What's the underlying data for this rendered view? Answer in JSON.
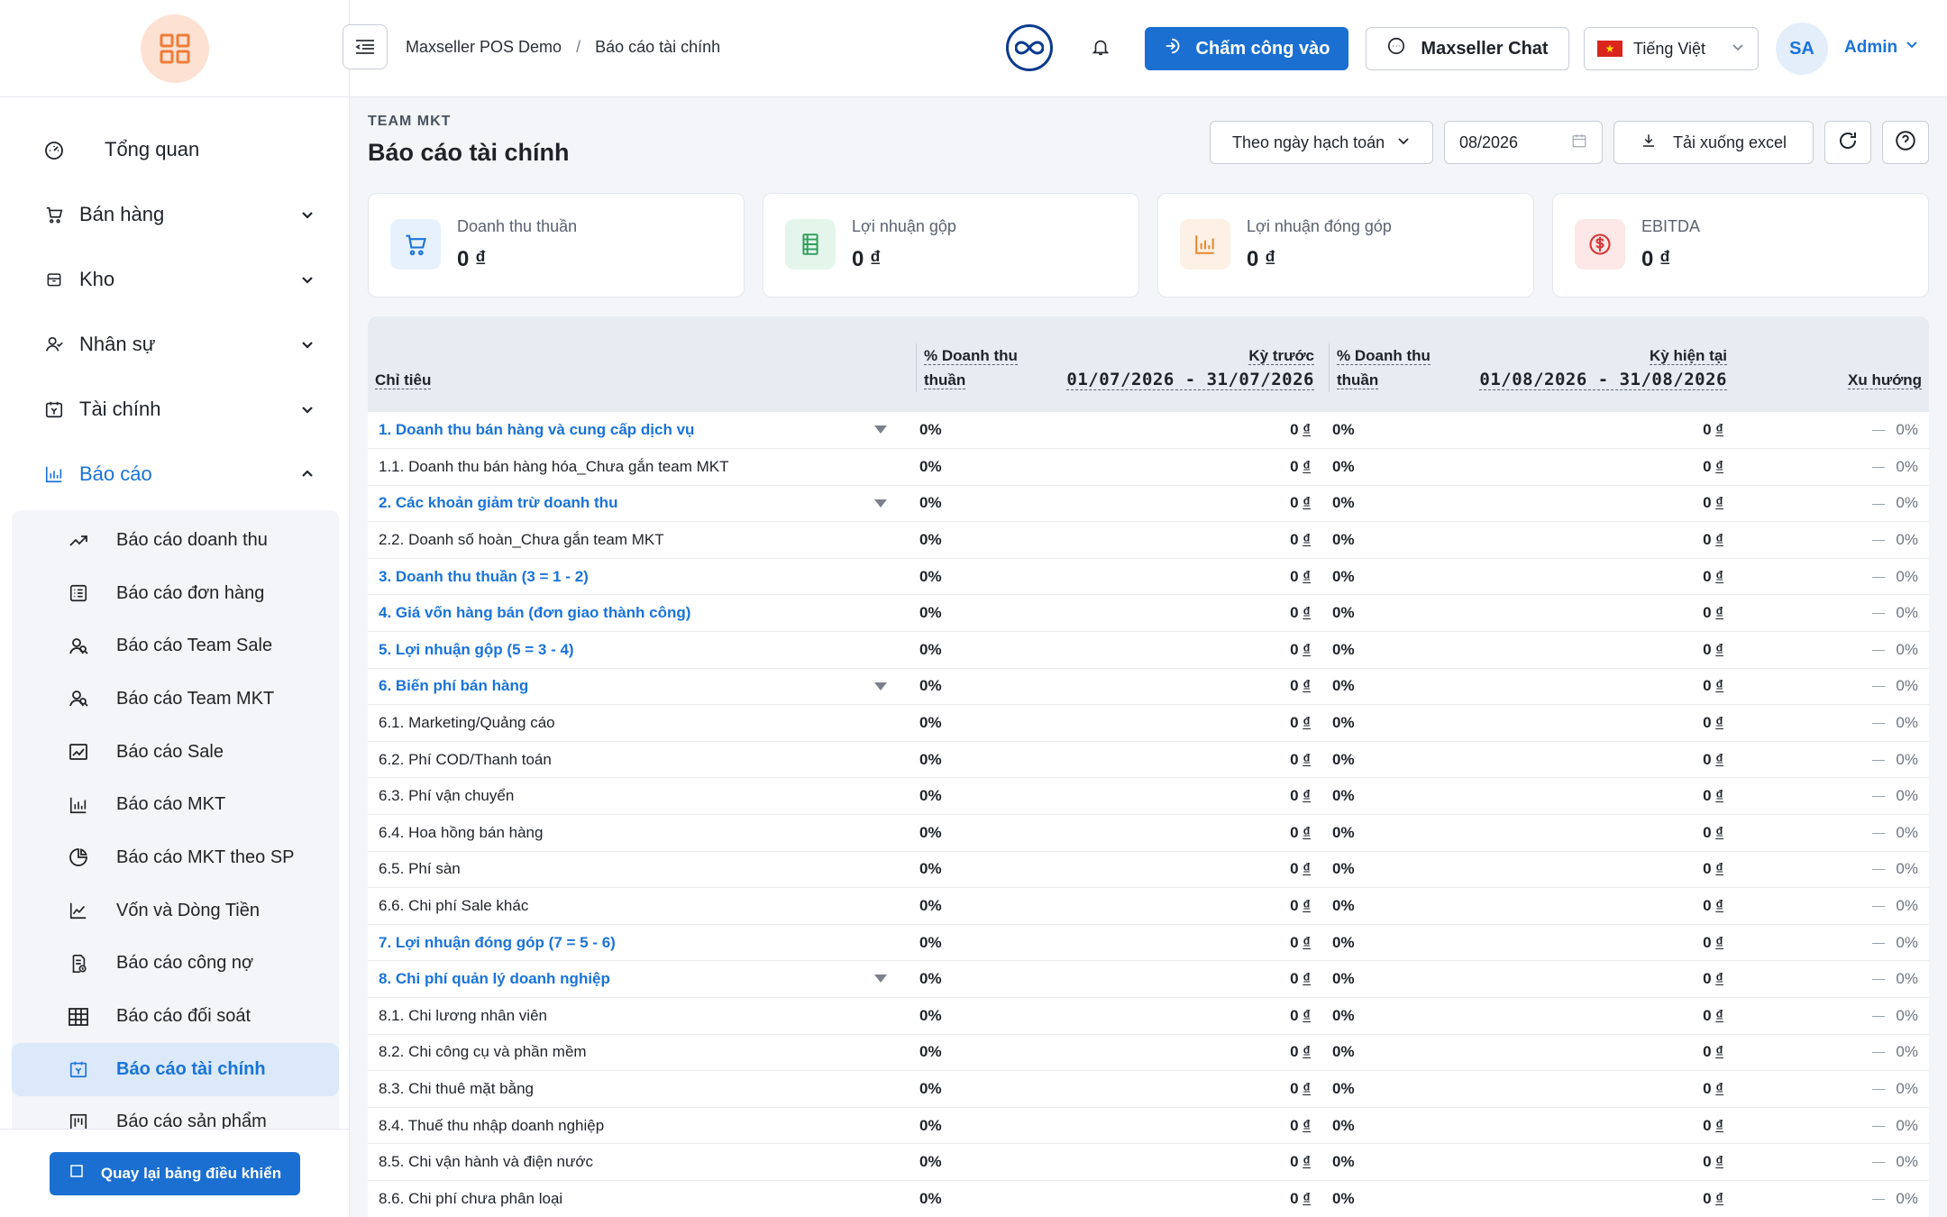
{
  "sidebar": {
    "items": [
      {
        "label": "Tổng quan",
        "icon": "dashboard-icon"
      },
      {
        "label": "Bán hàng",
        "icon": "cart-icon"
      },
      {
        "label": "Kho",
        "icon": "box-icon"
      },
      {
        "label": "Nhân sự",
        "icon": "users-icon"
      },
      {
        "label": "Tài chính",
        "icon": "finance-icon"
      },
      {
        "label": "Báo cáo",
        "icon": "bar-chart-icon"
      }
    ],
    "subitems": [
      {
        "label": "Báo cáo doanh thu",
        "icon": "trend-up-icon"
      },
      {
        "label": "Báo cáo đơn hàng",
        "icon": "list-icon"
      },
      {
        "label": "Báo cáo Team Sale",
        "icon": "team-icon"
      },
      {
        "label": "Báo cáo Team MKT",
        "icon": "team-icon"
      },
      {
        "label": "Báo cáo Sale",
        "icon": "line-chart-icon"
      },
      {
        "label": "Báo cáo MKT",
        "icon": "bar-chart-icon"
      },
      {
        "label": "Báo cáo MKT theo SP",
        "icon": "pie-chart-icon"
      },
      {
        "label": "Vốn và Dòng Tiền",
        "icon": "stock-chart-icon"
      },
      {
        "label": "Báo cáo công nợ",
        "icon": "doc-icon"
      },
      {
        "label": "Báo cáo đối soát",
        "icon": "grid-icon"
      },
      {
        "label": "Báo cáo tài chính",
        "icon": "calendar-money-icon"
      },
      {
        "label": "Báo cáo sản phẩm",
        "icon": "kanban-icon"
      }
    ],
    "back_label": "Quay lại bảng điều khiển"
  },
  "header": {
    "breadcrumb": [
      "Maxseller POS Demo",
      "/",
      "Báo cáo tài chính"
    ],
    "checkin_label": "Chấm công vào",
    "chat_label": "Maxseller Chat",
    "language": "Tiếng Việt",
    "avatar_initials": "SA",
    "user_name": "Admin"
  },
  "page": {
    "team": "TEAM MKT",
    "title": "Báo cáo tài chính",
    "filter_select": "Theo ngày hạch toán",
    "date_value": "08/2026",
    "excel_label": "Tải xuống excel"
  },
  "cards": [
    {
      "label": "Doanh thu thuần",
      "value": "0 ₫",
      "bg": "#e6f1fc",
      "color": "#1a73d9"
    },
    {
      "label": "Lợi nhuận gộp",
      "value": "0 ₫",
      "bg": "#e4f5ec",
      "color": "#2e9e5b"
    },
    {
      "label": "Lợi nhuận đóng góp",
      "value": "0 ₫",
      "bg": "#fdf0e4",
      "color": "#e8852c"
    },
    {
      "label": "EBITDA",
      "value": "0 ₫",
      "bg": "#fde7e7",
      "color": "#d93636"
    }
  ],
  "table": {
    "headers": {
      "metric": "Chỉ tiêu",
      "pct_line1": "% Doanh thu",
      "pct_line2": "thuần",
      "prev_label": "Kỳ trước",
      "prev_range": "01/07/2026 - 31/07/2026",
      "curr_label": "Kỳ hiện tại",
      "curr_range": "01/08/2026 - 31/08/2026",
      "trend": "Xu hướng"
    },
    "rows": [
      {
        "name": "1. Doanh thu bán hàng và cung cấp dịch vụ",
        "group": true,
        "caret": true,
        "pct1": "0%",
        "prev": "0",
        "pct2": "0%",
        "curr": "0",
        "trend": "0%"
      },
      {
        "name": "1.1. Doanh thu bán hàng hóa_Chưa gắn team MKT",
        "group": false,
        "caret": false,
        "pct1": "0%",
        "prev": "0",
        "pct2": "0%",
        "curr": "0",
        "trend": "0%"
      },
      {
        "name": "2. Các khoản giảm trừ doanh thu",
        "group": true,
        "caret": true,
        "pct1": "0%",
        "prev": "0",
        "pct2": "0%",
        "curr": "0",
        "trend": "0%"
      },
      {
        "name": "2.2. Doanh số hoàn_Chưa gắn team MKT",
        "group": false,
        "caret": false,
        "pct1": "0%",
        "prev": "0",
        "pct2": "0%",
        "curr": "0",
        "trend": "0%"
      },
      {
        "name": "3. Doanh thu thuần (3 = 1 - 2)",
        "group": true,
        "caret": false,
        "pct1": "0%",
        "prev": "0",
        "pct2": "0%",
        "curr": "0",
        "trend": "0%"
      },
      {
        "name": "4. Giá vốn hàng bán (đơn giao thành công)",
        "group": true,
        "caret": false,
        "pct1": "0%",
        "prev": "0",
        "pct2": "0%",
        "curr": "0",
        "trend": "0%"
      },
      {
        "name": "5. Lợi nhuận gộp (5 = 3 - 4)",
        "group": true,
        "caret": false,
        "pct1": "0%",
        "prev": "0",
        "pct2": "0%",
        "curr": "0",
        "trend": "0%"
      },
      {
        "name": "6. Biến phí bán hàng",
        "group": true,
        "caret": true,
        "pct1": "0%",
        "prev": "0",
        "pct2": "0%",
        "curr": "0",
        "trend": "0%"
      },
      {
        "name": "6.1. Marketing/Quảng cáo",
        "group": false,
        "caret": false,
        "pct1": "0%",
        "prev": "0",
        "pct2": "0%",
        "curr": "0",
        "trend": "0%"
      },
      {
        "name": "6.2. Phí COD/Thanh toán",
        "group": false,
        "caret": false,
        "pct1": "0%",
        "prev": "0",
        "pct2": "0%",
        "curr": "0",
        "trend": "0%"
      },
      {
        "name": "6.3. Phí vận chuyển",
        "group": false,
        "caret": false,
        "pct1": "0%",
        "prev": "0",
        "pct2": "0%",
        "curr": "0",
        "trend": "0%"
      },
      {
        "name": "6.4. Hoa hồng bán hàng",
        "group": false,
        "caret": false,
        "pct1": "0%",
        "prev": "0",
        "pct2": "0%",
        "curr": "0",
        "trend": "0%"
      },
      {
        "name": "6.5. Phí sàn",
        "group": false,
        "caret": false,
        "pct1": "0%",
        "prev": "0",
        "pct2": "0%",
        "curr": "0",
        "trend": "0%"
      },
      {
        "name": "6.6. Chi phí Sale khác",
        "group": false,
        "caret": false,
        "pct1": "0%",
        "prev": "0",
        "pct2": "0%",
        "curr": "0",
        "trend": "0%"
      },
      {
        "name": "7. Lợi nhuận đóng góp (7 = 5 - 6)",
        "group": true,
        "caret": false,
        "pct1": "0%",
        "prev": "0",
        "pct2": "0%",
        "curr": "0",
        "trend": "0%"
      },
      {
        "name": "8. Chi phí quản lý doanh nghiệp",
        "group": true,
        "caret": true,
        "pct1": "0%",
        "prev": "0",
        "pct2": "0%",
        "curr": "0",
        "trend": "0%"
      },
      {
        "name": "8.1. Chi lương nhân viên",
        "group": false,
        "caret": false,
        "pct1": "0%",
        "prev": "0",
        "pct2": "0%",
        "curr": "0",
        "trend": "0%"
      },
      {
        "name": "8.2. Chi công cụ và phần mềm",
        "group": false,
        "caret": false,
        "pct1": "0%",
        "prev": "0",
        "pct2": "0%",
        "curr": "0",
        "trend": "0%"
      },
      {
        "name": "8.3. Chi thuê mặt bằng",
        "group": false,
        "caret": false,
        "pct1": "0%",
        "prev": "0",
        "pct2": "0%",
        "curr": "0",
        "trend": "0%"
      },
      {
        "name": "8.4. Thuế thu nhập doanh nghiệp",
        "group": false,
        "caret": false,
        "pct1": "0%",
        "prev": "0",
        "pct2": "0%",
        "curr": "0",
        "trend": "0%"
      },
      {
        "name": "8.5. Chi vận hành và điện nước",
        "group": false,
        "caret": false,
        "pct1": "0%",
        "prev": "0",
        "pct2": "0%",
        "curr": "0",
        "trend": "0%"
      },
      {
        "name": "8.6. Chi phí chưa phân loại",
        "group": false,
        "caret": false,
        "pct1": "0%",
        "prev": "0",
        "pct2": "0%",
        "curr": "0",
        "trend": "0%"
      }
    ],
    "currency": "₫"
  }
}
